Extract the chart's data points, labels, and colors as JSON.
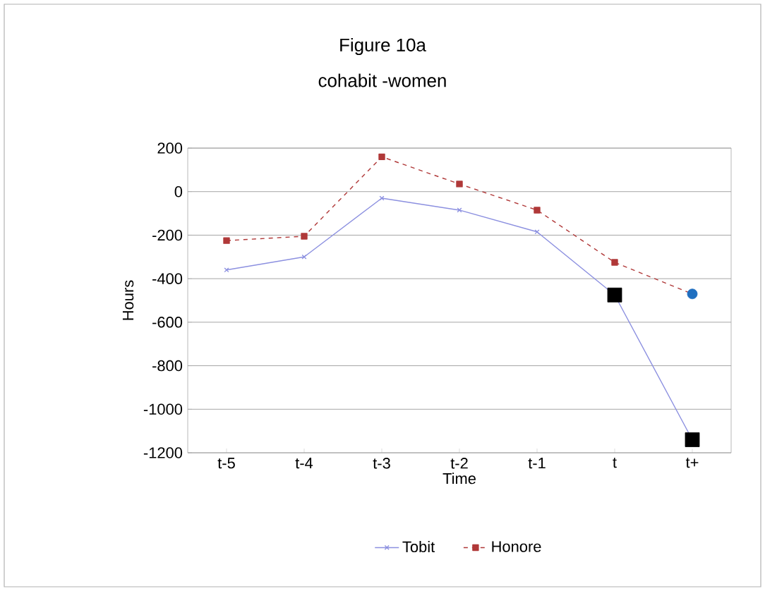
{
  "chart_data": {
    "type": "line",
    "title": "Figure 10a",
    "subtitle": "cohabit -women",
    "xlabel": "Time",
    "ylabel": "Hours",
    "categories": [
      "t-5",
      "t-4",
      "t-3",
      "t-2",
      "t-1",
      "t",
      "t+"
    ],
    "series": [
      {
        "name": "Tobit",
        "color": "#8c90e0",
        "values": [
          -360,
          -300,
          -30,
          -85,
          -185,
          -475,
          -1140
        ],
        "marker": "cross",
        "line_style": "solid"
      },
      {
        "name": "Honore",
        "color": "#b03838",
        "values": [
          -225,
          -205,
          160,
          35,
          -85,
          -325,
          -470
        ],
        "marker": "square",
        "line_style": "dashed"
      },
      {
        "type": "scatter",
        "color": "#000000",
        "values": [
          null,
          null,
          null,
          null,
          null,
          -475,
          -1140
        ],
        "marker": "square"
      },
      {
        "type": "scatter",
        "color": "#1f6fc0",
        "values": [
          null,
          null,
          null,
          null,
          null,
          null,
          -470
        ],
        "marker": "circle"
      }
    ],
    "ylim": [
      -1200,
      200
    ],
    "yticks": [
      -1200,
      -1000,
      -800,
      -600,
      -400,
      -200,
      0,
      200
    ],
    "grid": "y",
    "legend": "bottom"
  }
}
